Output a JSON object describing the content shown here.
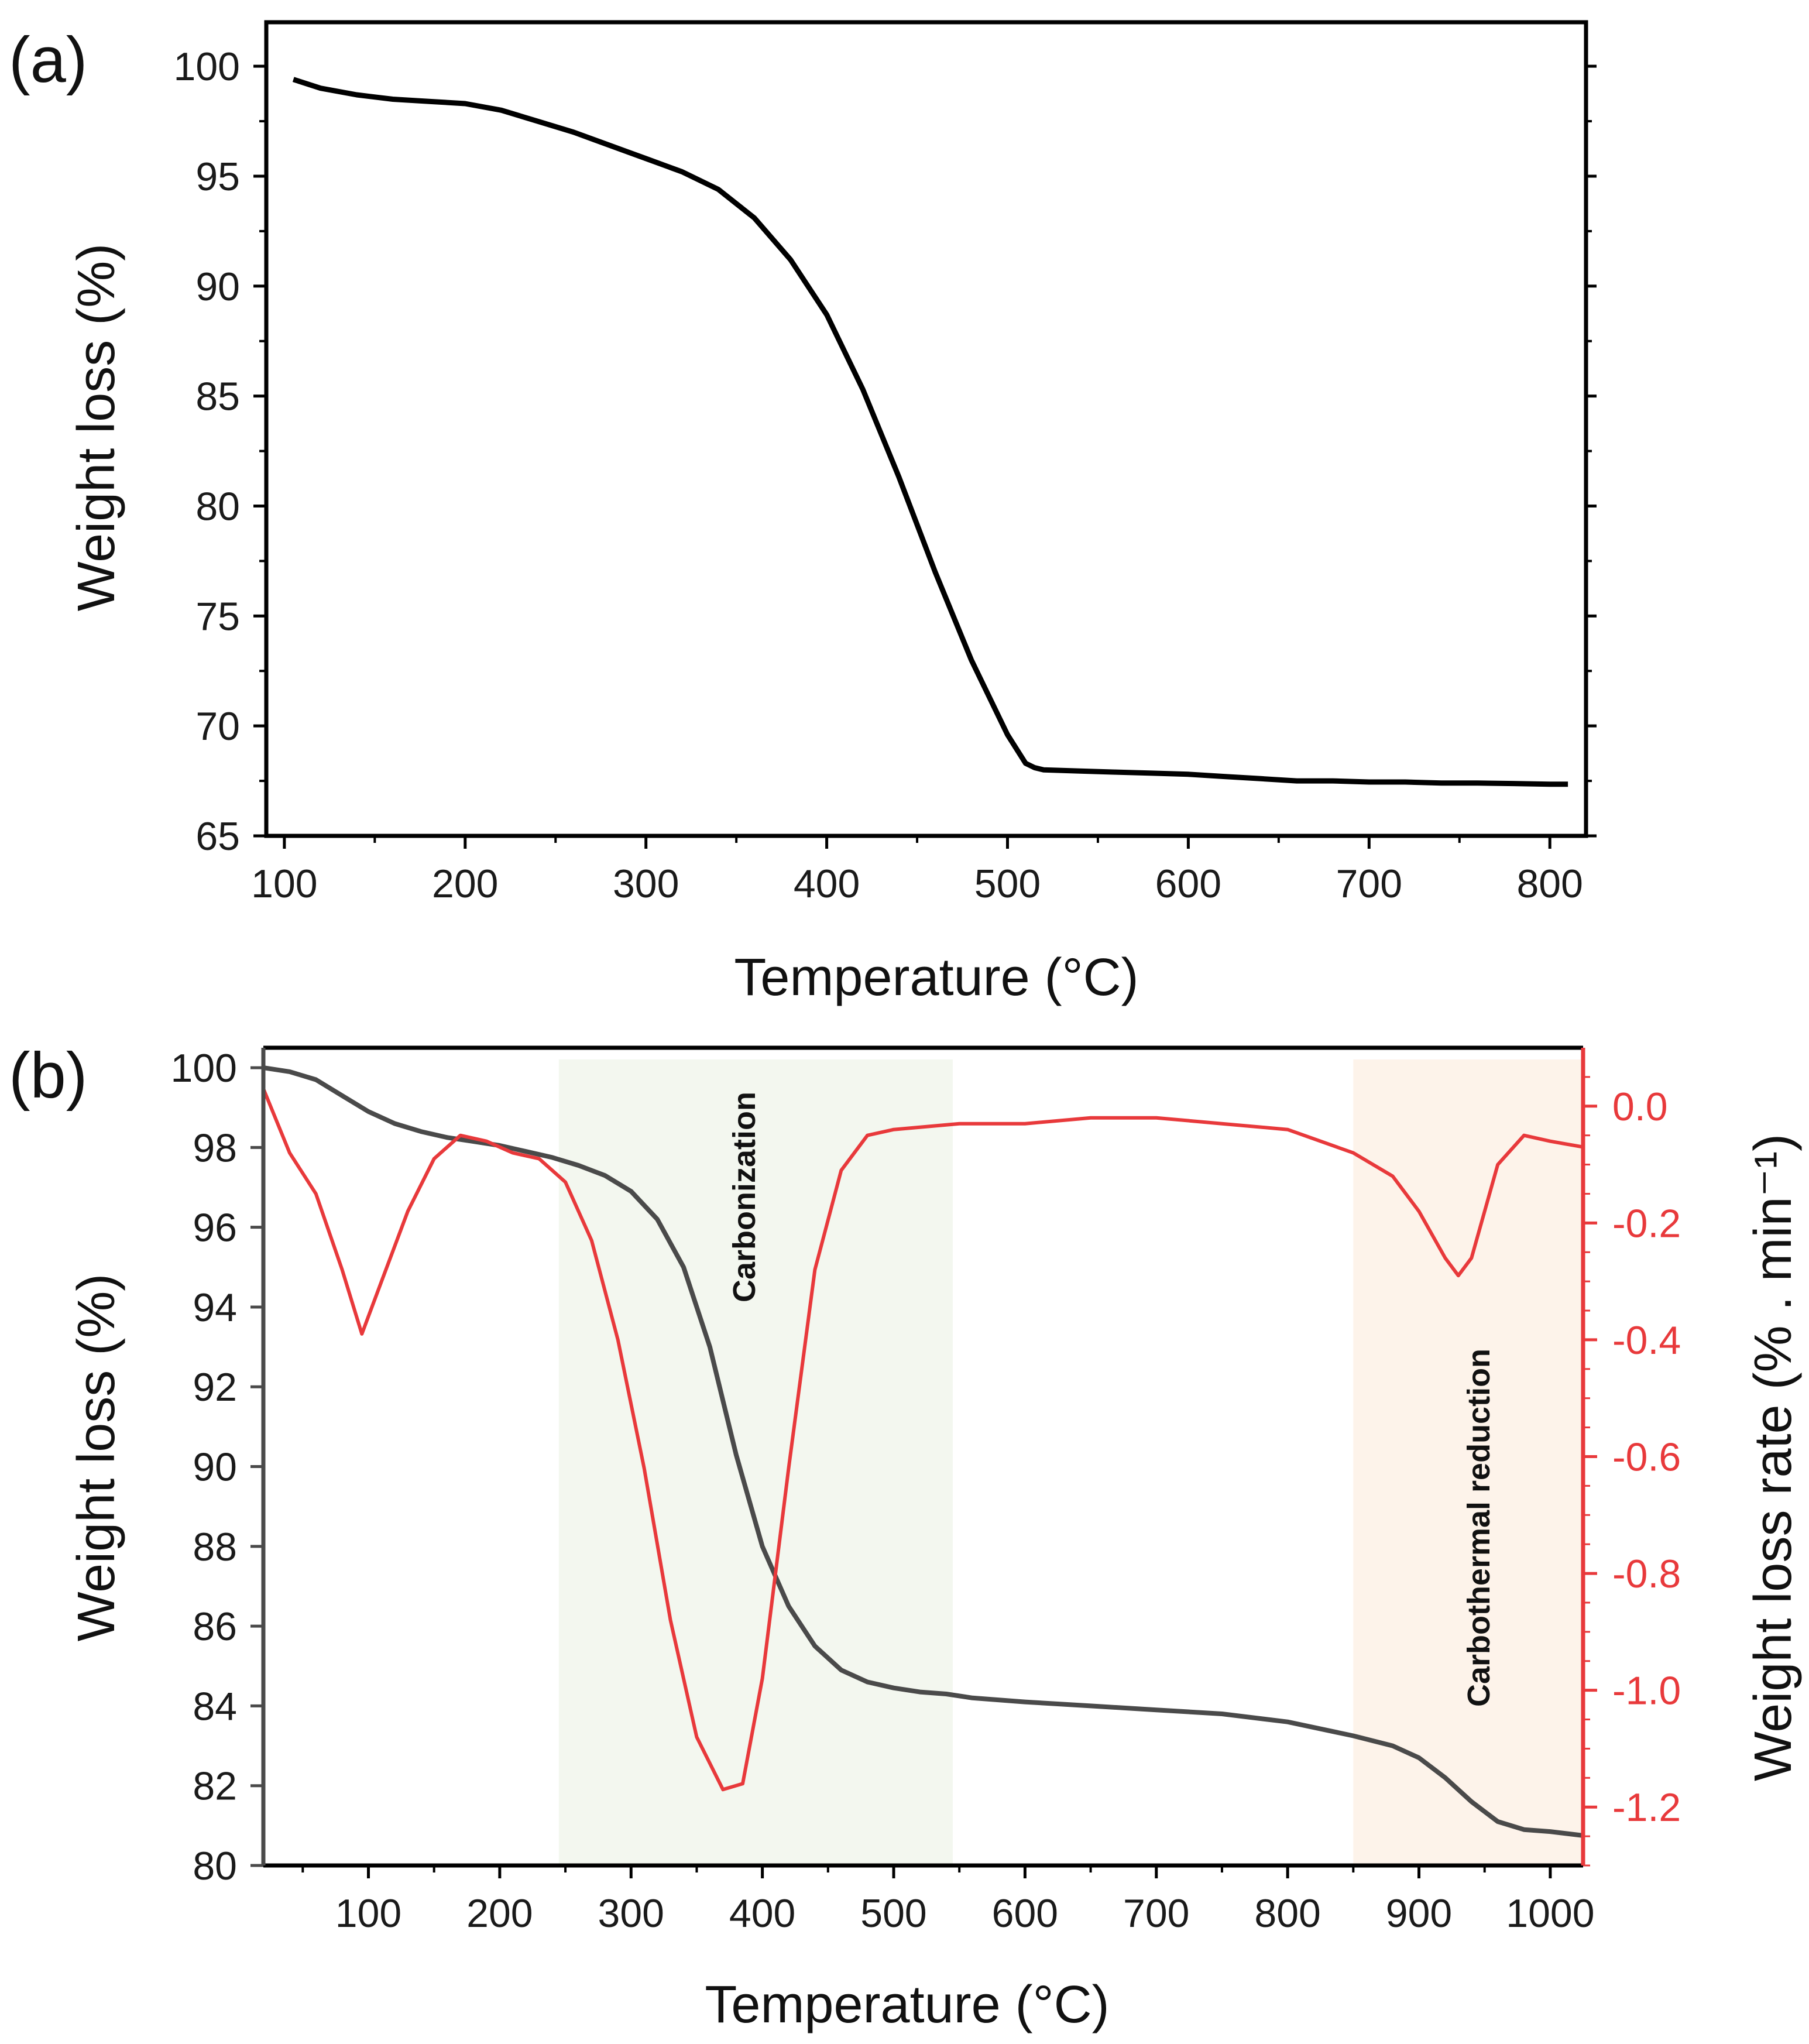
{
  "panels": {
    "a": {
      "label": "(a)"
    },
    "b": {
      "label": "(b)"
    }
  },
  "colors": {
    "curve_a": "#000000",
    "curve_b_weight": "#4a4a4a",
    "rate": "#e8393b",
    "carbonization_fill": "#f3f7ef",
    "carbothermal_fill": "#fdf3ea"
  },
  "chart_data": [
    {
      "type": "line",
      "panel": "(a)",
      "title": "",
      "xlabel": "Temperature (°C)",
      "ylabel": "Weight loss (%)",
      "xlim": [
        90,
        820
      ],
      "ylim": [
        65,
        102
      ],
      "xticks": [
        100,
        200,
        300,
        400,
        500,
        600,
        700,
        800
      ],
      "yticks": [
        65,
        70,
        75,
        80,
        85,
        90,
        95,
        100
      ],
      "series": [
        {
          "name": "Weight loss",
          "x": [
            105,
            120,
            140,
            160,
            180,
            200,
            220,
            240,
            260,
            280,
            300,
            320,
            340,
            360,
            380,
            400,
            420,
            440,
            460,
            480,
            500,
            510,
            515,
            520,
            540,
            560,
            580,
            600,
            620,
            640,
            660,
            680,
            700,
            720,
            740,
            760,
            780,
            800,
            810
          ],
          "y": [
            99.4,
            99.0,
            98.7,
            98.5,
            98.4,
            98.3,
            98.0,
            97.5,
            97.0,
            96.4,
            95.8,
            95.2,
            94.4,
            93.1,
            91.2,
            88.7,
            85.3,
            81.3,
            77.0,
            73.0,
            69.6,
            68.3,
            68.1,
            68.0,
            67.95,
            67.9,
            67.85,
            67.8,
            67.7,
            67.6,
            67.5,
            67.5,
            67.45,
            67.45,
            67.4,
            67.4,
            67.38,
            67.35,
            67.35
          ]
        }
      ]
    },
    {
      "type": "line",
      "panel": "(b)",
      "title": "",
      "xlabel": "Temperature (°C)",
      "ylabel": "Weight loss (%)",
      "y2label": "Weight loss rate (% . min⁻¹)",
      "xlim": [
        20,
        1025
      ],
      "ylim": [
        80,
        100.5
      ],
      "y2lim": [
        -1.3,
        0.1
      ],
      "xticks": [
        100,
        200,
        300,
        400,
        500,
        600,
        700,
        800,
        900,
        1000
      ],
      "yticks": [
        80,
        82,
        84,
        86,
        88,
        90,
        92,
        94,
        96,
        98,
        100
      ],
      "y2ticks": [
        -1.2,
        -1.0,
        -0.8,
        -0.6,
        -0.4,
        -0.2,
        0.0
      ],
      "y2ticklabels": [
        "-1.2",
        "-1.0",
        "-0.8",
        "-0.6",
        "-0.4",
        "-0.2",
        "0.0"
      ],
      "regions": [
        {
          "label": "Carbonization",
          "x0": 245,
          "x1": 545
        },
        {
          "label": "Carbothermal reduction",
          "x0": 850,
          "x1": 1025
        }
      ],
      "series": [
        {
          "name": "Weight loss",
          "axis": "left",
          "x": [
            20,
            40,
            60,
            80,
            100,
            120,
            140,
            160,
            180,
            200,
            220,
            240,
            260,
            280,
            300,
            320,
            340,
            360,
            380,
            400,
            420,
            440,
            460,
            480,
            500,
            520,
            540,
            560,
            600,
            650,
            700,
            750,
            800,
            850,
            880,
            900,
            920,
            940,
            960,
            980,
            1000,
            1025
          ],
          "y": [
            100.0,
            99.9,
            99.7,
            99.3,
            98.9,
            98.6,
            98.4,
            98.25,
            98.15,
            98.05,
            97.9,
            97.75,
            97.55,
            97.3,
            96.9,
            96.2,
            95.0,
            93.0,
            90.3,
            88.0,
            86.5,
            85.5,
            84.9,
            84.6,
            84.45,
            84.35,
            84.3,
            84.2,
            84.1,
            84.0,
            83.9,
            83.8,
            83.6,
            83.25,
            83.0,
            82.7,
            82.2,
            81.6,
            81.1,
            80.9,
            80.85,
            80.75
          ]
        },
        {
          "name": "Weight loss rate",
          "axis": "right",
          "x": [
            20,
            40,
            60,
            80,
            95,
            110,
            130,
            150,
            170,
            190,
            210,
            230,
            250,
            270,
            290,
            310,
            330,
            350,
            370,
            385,
            400,
            420,
            440,
            460,
            480,
            500,
            550,
            600,
            650,
            700,
            750,
            800,
            850,
            880,
            900,
            920,
            930,
            940,
            960,
            980,
            1000,
            1025
          ],
          "y": [
            0.03,
            -0.08,
            -0.15,
            -0.28,
            -0.39,
            -0.3,
            -0.18,
            -0.09,
            -0.05,
            -0.06,
            -0.08,
            -0.09,
            -0.13,
            -0.23,
            -0.4,
            -0.62,
            -0.88,
            -1.08,
            -1.17,
            -1.16,
            -0.98,
            -0.62,
            -0.28,
            -0.11,
            -0.05,
            -0.04,
            -0.03,
            -0.03,
            -0.02,
            -0.02,
            -0.03,
            -0.04,
            -0.08,
            -0.12,
            -0.18,
            -0.26,
            -0.29,
            -0.26,
            -0.1,
            -0.05,
            -0.06,
            -0.07
          ]
        }
      ]
    }
  ]
}
